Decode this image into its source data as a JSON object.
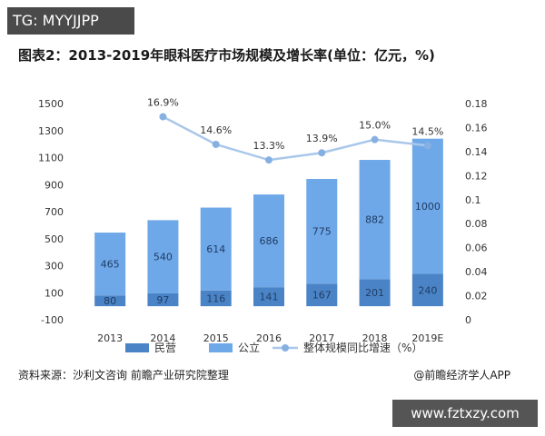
{
  "watermark_top": "TG: MYYJJPP",
  "watermark_bottom": "www.fztxzy.com",
  "source": "资料来源：沙利文咨询 前瞻产业研究院整理",
  "brand": "@前瞻经济学人APP",
  "colors": {
    "minying": "#4b84c6",
    "gongli": "#6fa8e8",
    "growth_line": "#a9c7ea",
    "growth_point": "#86b0e2"
  },
  "chart_data": {
    "type": "bar",
    "stacked": true,
    "title": "图表2：2013-2019年眼科医疗市场规模及增长率(单位：亿元，%)",
    "categories": [
      "2013",
      "2014",
      "2015",
      "2016",
      "2017",
      "2018",
      "2019E"
    ],
    "series": [
      {
        "name": "民营",
        "axis": "left",
        "values": [
          80,
          97,
          116,
          141,
          167,
          201,
          240
        ]
      },
      {
        "name": "公立",
        "axis": "left",
        "values": [
          465,
          540,
          614,
          686,
          775,
          882,
          1000
        ]
      },
      {
        "name": "整体规模同比增速（%）",
        "axis": "right",
        "type": "line",
        "values": [
          null,
          0.169,
          0.146,
          0.133,
          0.139,
          0.15,
          0.145
        ],
        "labels": [
          "",
          "16.9%",
          "14.6%",
          "13.3%",
          "13.9%",
          "15.0%",
          "14.5%"
        ]
      }
    ],
    "y_left": {
      "min": -100,
      "max": 1500,
      "ticks": [
        "-100",
        "100",
        "300",
        "500",
        "700",
        "900",
        "1100",
        "1300",
        "1500"
      ]
    },
    "y_right": {
      "min": 0,
      "max": 0.18,
      "ticks": [
        "0",
        "0.02",
        "0.04",
        "0.06",
        "0.08",
        "0.1",
        "0.12",
        "0.14",
        "0.16",
        "0.18"
      ]
    },
    "legend_position": "bottom",
    "grid": false
  }
}
